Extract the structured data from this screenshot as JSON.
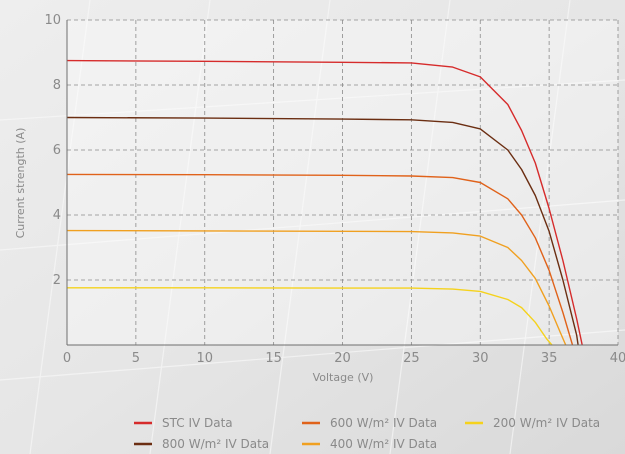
{
  "chart_data": {
    "type": "line",
    "title": "",
    "xlabel": "Voltage (V)",
    "ylabel": "Current strength (A)",
    "xlim": [
      0,
      40
    ],
    "ylim": [
      0,
      10
    ],
    "x_ticks": [
      0,
      5,
      10,
      15,
      20,
      25,
      30,
      35,
      40
    ],
    "y_ticks": [
      2,
      4,
      6,
      8,
      10
    ],
    "grid": true,
    "legend_position": "bottom",
    "series": [
      {
        "name": "STC IV Data",
        "color": "#d62b2b",
        "x": [
          0,
          10,
          20,
          25,
          28,
          30,
          32,
          33,
          34,
          35,
          36,
          37,
          37.4
        ],
        "y": [
          8.75,
          8.73,
          8.7,
          8.68,
          8.55,
          8.25,
          7.4,
          6.6,
          5.6,
          4.2,
          2.6,
          0.8,
          0
        ]
      },
      {
        "name": "800 W/m² IV Data",
        "color": "#6b2e12",
        "x": [
          0,
          10,
          20,
          25,
          28,
          30,
          32,
          33,
          34,
          35,
          36,
          37,
          37.1
        ],
        "y": [
          7.0,
          6.98,
          6.95,
          6.93,
          6.85,
          6.65,
          6.0,
          5.4,
          4.6,
          3.5,
          2.0,
          0.3,
          0
        ]
      },
      {
        "name": "600 W/m² IV Data",
        "color": "#e0621a",
        "x": [
          0,
          10,
          20,
          25,
          28,
          30,
          32,
          33,
          34,
          35,
          36,
          36.7
        ],
        "y": [
          5.25,
          5.24,
          5.22,
          5.2,
          5.15,
          5.0,
          4.5,
          4.0,
          3.3,
          2.3,
          1.0,
          0
        ]
      },
      {
        "name": "400 W/m² IV Data",
        "color": "#f0a020",
        "x": [
          0,
          10,
          20,
          25,
          28,
          30,
          32,
          33,
          34,
          35,
          35.8,
          36.2
        ],
        "y": [
          3.52,
          3.51,
          3.5,
          3.49,
          3.45,
          3.35,
          3.0,
          2.6,
          2.05,
          1.2,
          0.4,
          0
        ]
      },
      {
        "name": "200 W/m² IV Data",
        "color": "#f5d21c",
        "x": [
          0,
          10,
          20,
          25,
          28,
          30,
          32,
          33,
          34,
          34.8,
          35.2
        ],
        "y": [
          1.76,
          1.76,
          1.75,
          1.75,
          1.72,
          1.65,
          1.4,
          1.15,
          0.7,
          0.2,
          0
        ]
      }
    ]
  }
}
